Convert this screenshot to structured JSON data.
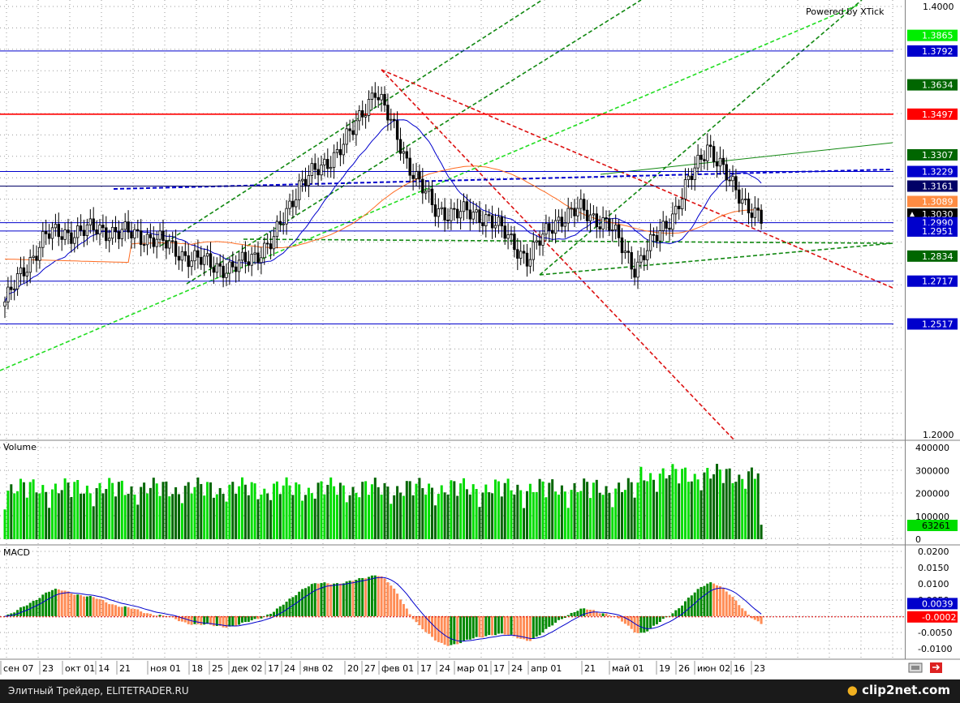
{
  "chart_data": [
    {
      "type": "candlestick",
      "watermark": "Powered by XTick",
      "y_range": [
        1.2,
        1.4
      ],
      "y_ticks": [
        "1.4000",
        "1.2000"
      ],
      "x_labels": [
        "сен 07",
        "23",
        "окт 01",
        "14",
        "21",
        "ноя 01",
        "18",
        "25",
        "дек 02",
        "17",
        "24",
        "янв 02",
        "20",
        "27",
        "фев 01",
        "17",
        "24",
        "мар 01",
        "17",
        "24",
        "апр 01",
        "21",
        "май 01",
        "19",
        "26",
        "июн 02",
        "16",
        "23"
      ],
      "horizontal_levels": [
        {
          "value": 1.3865,
          "label": "1.3865",
          "color": "#00ee00"
        },
        {
          "value": 1.3792,
          "label": "1.3792",
          "color": "#0000cc"
        },
        {
          "value": 1.3634,
          "label": "1.3634",
          "color": "#006600"
        },
        {
          "value": 1.3497,
          "label": "1.3497",
          "color": "#ff0000"
        },
        {
          "value": 1.3307,
          "label": "1.3307",
          "color": "#006600"
        },
        {
          "value": 1.3229,
          "label": "1.3229",
          "color": "#0000cc"
        },
        {
          "value": 1.3161,
          "label": "1.3161",
          "color": "#000066"
        },
        {
          "value": 1.3089,
          "label": "1.3089",
          "color": "#ff8c42"
        },
        {
          "value": 1.303,
          "label": "1.3030",
          "color": "#000000"
        },
        {
          "value": 1.299,
          "label": "1.2990",
          "color": "#0000cc"
        },
        {
          "value": 1.2951,
          "label": "1.2951",
          "color": "#0000cc"
        },
        {
          "value": 1.2834,
          "label": "1.2834",
          "color": "#006600"
        },
        {
          "value": 1.2717,
          "label": "1.2717",
          "color": "#0000cc"
        },
        {
          "value": 1.2517,
          "label": "1.2517",
          "color": "#0000cc"
        }
      ],
      "last_price": "1.3030",
      "series": [
        {
          "name": "price",
          "color": "#000000"
        },
        {
          "name": "ma-fast",
          "color": "#0000cc"
        },
        {
          "name": "ma-slow",
          "color": "#ff6a20"
        }
      ]
    },
    {
      "type": "bar",
      "title": "Volume",
      "y_ticks": [
        "400000",
        "300000",
        "200000",
        "100000",
        "0"
      ],
      "y_range": [
        0,
        420000
      ],
      "last_value": "63261",
      "colors": {
        "up": "#00dd00",
        "down": "#006600"
      }
    },
    {
      "type": "bar",
      "title": "MACD",
      "y_ticks": [
        "0.0200",
        "0.0150",
        "0.0100",
        "0.0050",
        "0.0000",
        "-0.0050",
        "-0.0100"
      ],
      "y_range": [
        -0.012,
        0.022
      ],
      "signal_value": "0.0039",
      "last_value": "-0.0002",
      "colors": {
        "up": "#008800",
        "down": "#ff8c55",
        "signal": "#0000cc"
      }
    }
  ],
  "footer": {
    "text": "Элитный Трейдер, ELITETRADER.RU",
    "logo": "clip2net.com"
  }
}
